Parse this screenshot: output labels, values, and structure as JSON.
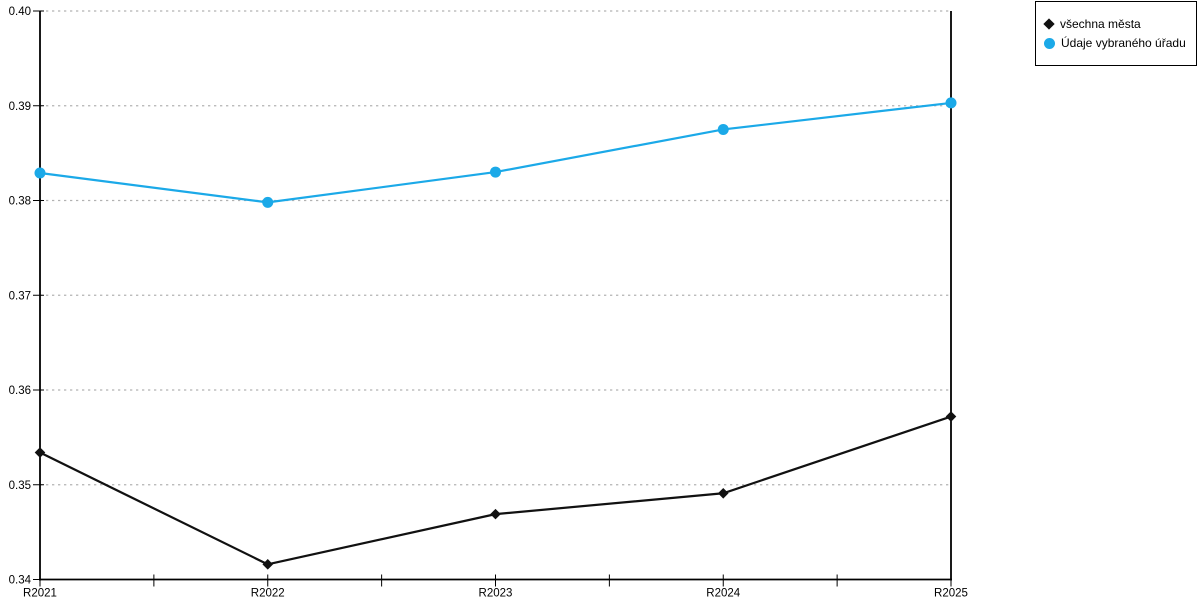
{
  "chart_data": {
    "type": "line",
    "title": "",
    "xlabel": "",
    "ylabel": "",
    "categories": [
      "R2021",
      "R2022",
      "R2023",
      "R2024",
      "R2025"
    ],
    "series": [
      {
        "name": "všechna města",
        "color": "#111111",
        "marker": "diamond",
        "values": [
          0.3534,
          0.3416,
          0.3469,
          0.3491,
          0.3572
        ]
      },
      {
        "name": "Údaje vybraného úřadu",
        "color": "#1ba9e8",
        "marker": "circle",
        "values": [
          0.3829,
          0.3798,
          0.383,
          0.3875,
          0.3903
        ]
      }
    ],
    "ylim": [
      0.34,
      0.4
    ],
    "y_ticks": [
      0.34,
      0.35,
      0.36,
      0.37,
      0.38,
      0.39,
      0.4
    ],
    "y_tick_labels": [
      "0.34",
      "0.35",
      "0.36",
      "0.37",
      "0.38",
      "0.39",
      "0.40"
    ],
    "grid": true,
    "gridline_color": "#b2b2b2",
    "axis_color": "#000000",
    "legend_position": "top-right"
  }
}
